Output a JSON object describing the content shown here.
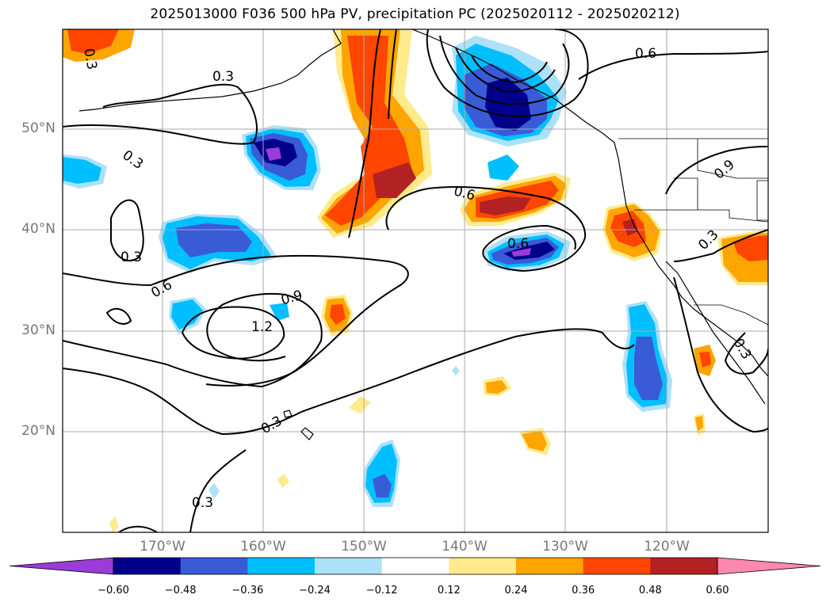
{
  "title": "2025013000 F036 500 hPa PV, precipitation PC (2025020112 - 2025020212)",
  "lat_labels": [
    "50°N",
    "40°N",
    "30°N",
    "20°N"
  ],
  "lon_labels": [
    "170°W",
    "160°W",
    "150°W",
    "140°W",
    "130°W",
    "120°W"
  ],
  "contour_labels": [
    "0.3",
    "0.3",
    "0.3",
    "0.6",
    "0.9",
    "1.2",
    "0.3",
    "0.3",
    "0.6",
    "0.6",
    "0.6",
    "0.3",
    "0.9",
    "0.3",
    "0.3"
  ],
  "colorbar": {
    "colors": [
      "#9a3cd6",
      "#00008b",
      "#3a5bd6",
      "#00bfff",
      "#ade1f9",
      "#ffffff",
      "#ffea8c",
      "#ffa500",
      "#ff4500",
      "#b22222",
      "#ff88b0"
    ],
    "ticks": [
      "−0.60",
      "−0.48",
      "−0.36",
      "−0.24",
      "−0.12",
      "0.12",
      "0.24",
      "0.36",
      "0.48",
      "0.60"
    ]
  }
}
